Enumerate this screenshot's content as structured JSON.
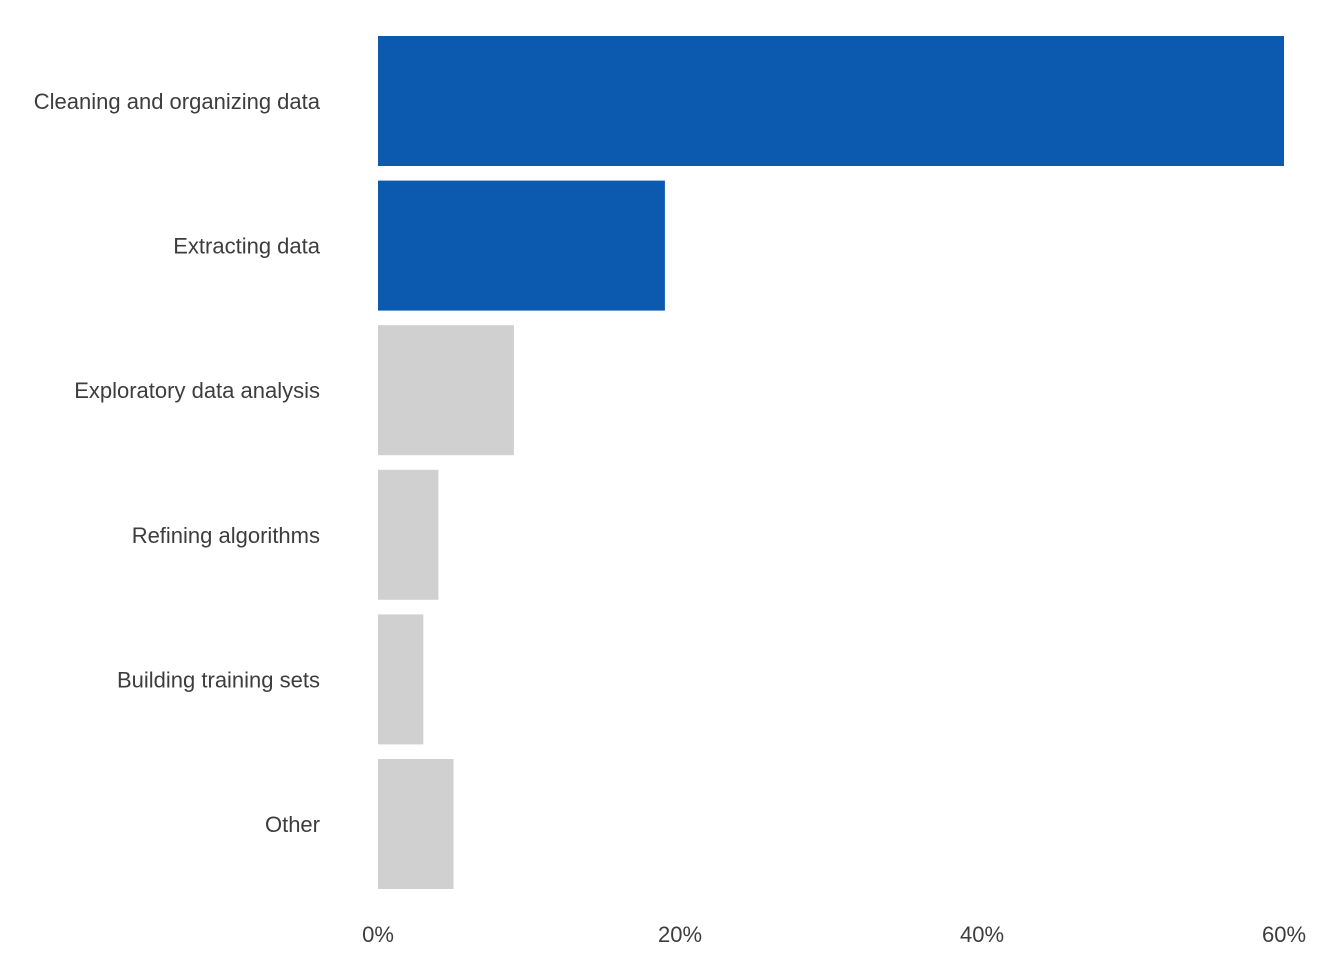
{
  "chart_data": {
    "type": "bar",
    "orientation": "horizontal",
    "title": "",
    "xlabel": "",
    "ylabel": "",
    "categories": [
      "Cleaning and organizing data",
      "Extracting data",
      "Exploratory data analysis",
      "Refining algorithms",
      "Building training sets",
      "Other"
    ],
    "values": [
      60,
      19,
      9,
      4,
      3,
      5
    ],
    "highlighted": [
      true,
      true,
      false,
      false,
      false,
      false
    ],
    "xlim": [
      0,
      60
    ],
    "xticks": [
      0,
      20,
      40,
      60
    ],
    "xtick_labels": [
      "0%",
      "20%",
      "40%",
      "60%"
    ],
    "grid": false,
    "legend": "none",
    "colors": {
      "highlight": "#0b5ab0",
      "muted": "#d0d0d0",
      "text": "#3d3d3d"
    }
  }
}
